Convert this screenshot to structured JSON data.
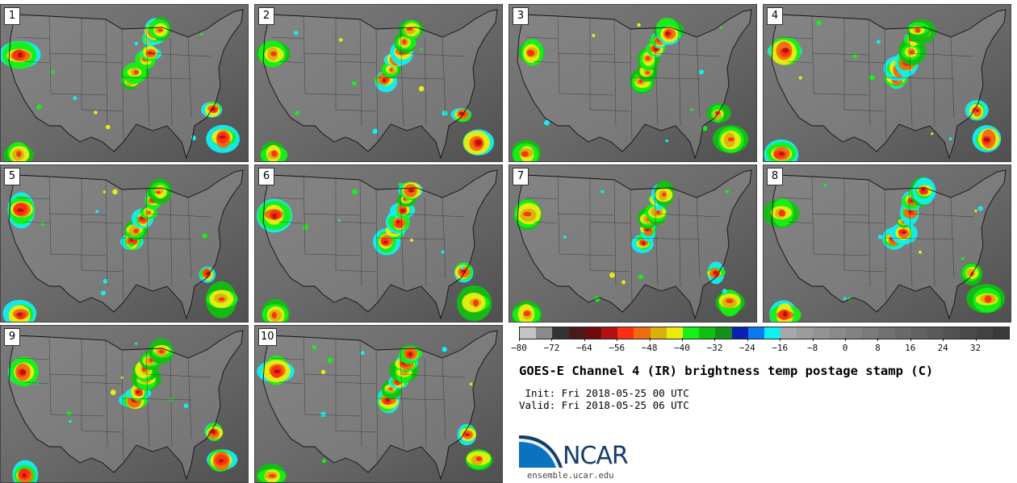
{
  "panels": [
    {
      "label": "1",
      "variant": 0
    },
    {
      "label": "2",
      "variant": 1
    },
    {
      "label": "3",
      "variant": 2
    },
    {
      "label": "4",
      "variant": 3
    },
    {
      "label": "5",
      "variant": 4
    },
    {
      "label": "6",
      "variant": 5
    },
    {
      "label": "7",
      "variant": 6
    },
    {
      "label": "8",
      "variant": 7
    },
    {
      "label": "9",
      "variant": 8
    },
    {
      "label": "10",
      "variant": 9
    }
  ],
  "colorbar": {
    "colors": [
      "#c4c4c4",
      "#8a8a8a",
      "#333333",
      "#4a1a1a",
      "#6e0c0c",
      "#b01212",
      "#ff2e10",
      "#f06a10",
      "#d9b00c",
      "#eaec10",
      "#16f016",
      "#10c010",
      "#12901a",
      "#0a20b0",
      "#0a78f0",
      "#10f0f0",
      "#a8a8a8",
      "#9c9c9c",
      "#939393",
      "#8a8a8a",
      "#828282",
      "#7a7a7a",
      "#727272",
      "#6a6a6a",
      "#626262",
      "#5a5a5a",
      "#525252",
      "#4a4a4a",
      "#424242",
      "#3a3a3a"
    ],
    "ticks": [
      "−80",
      "−72",
      "−64",
      "−56",
      "−48",
      "−40",
      "−32",
      "−24",
      "−16",
      "−8",
      "0",
      "8",
      "16",
      "24",
      "32"
    ]
  },
  "title": "GOES-E Channel 4 (IR) brightness temp postage stamp (C)",
  "init": " Init: Fri 2018-05-25 00 UTC",
  "valid": "Valid: Fri 2018-05-25 06 UTC",
  "logo": {
    "text": "NCAR",
    "primary": "#0a72bf",
    "dark": "#163c6a"
  },
  "site": "ensemble.ucar.edu"
}
